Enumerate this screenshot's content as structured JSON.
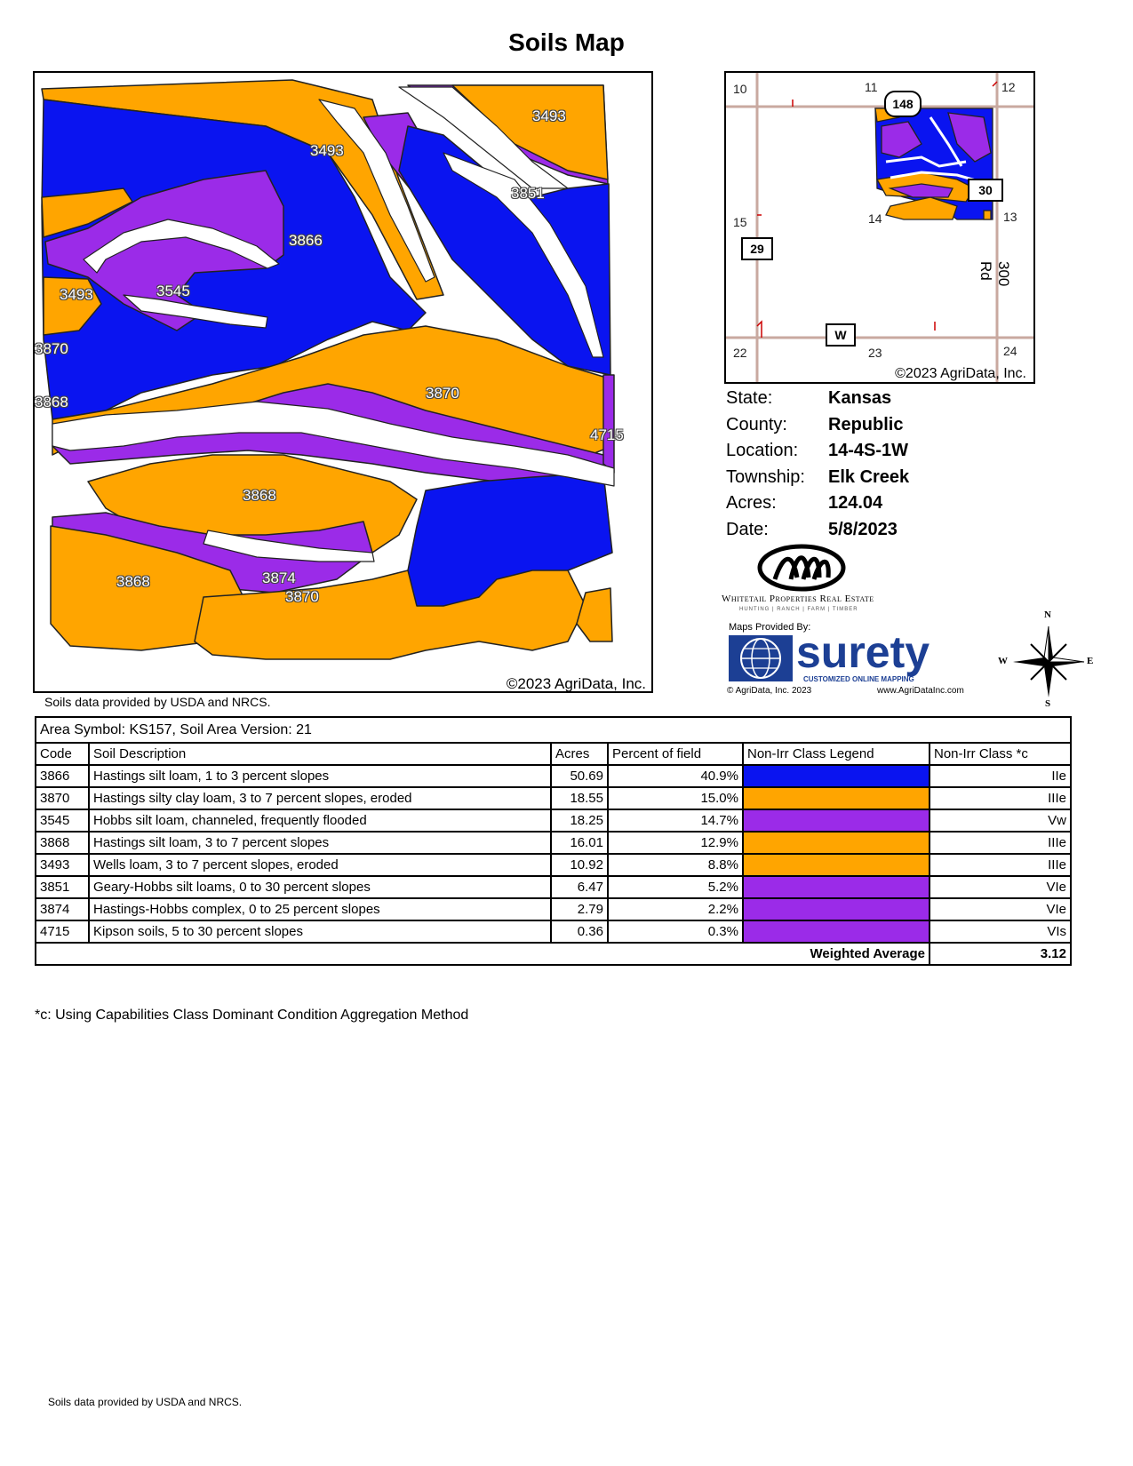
{
  "title": "Soils Map",
  "colors": {
    "blue": "#0A14F0",
    "orange": "#FFA500",
    "purple": "#9B2BE8"
  },
  "map": {
    "copyright": "©2023 AgriData, Inc.",
    "labels": [
      "3493",
      "3493",
      "3851",
      "3866",
      "3493",
      "3545",
      "3870",
      "3868",
      "3870",
      "4715",
      "3868",
      "3868",
      "3874",
      "3870"
    ]
  },
  "location_map": {
    "sections": [
      "10",
      "11",
      "12",
      "15",
      "14",
      "13",
      "22",
      "23",
      "24"
    ],
    "highways": [
      "148",
      "30",
      "29",
      "W"
    ],
    "road": "300 Rd",
    "copyright": "©2023 AgriData, Inc."
  },
  "info": [
    {
      "key": "State:",
      "value": "Kansas"
    },
    {
      "key": "County:",
      "value": "Republic"
    },
    {
      "key": "Location:",
      "value": "14-4S-1W"
    },
    {
      "key": "Township:",
      "value": "Elk Creek"
    },
    {
      "key": "Acres:",
      "value": "124.04"
    },
    {
      "key": "Date:",
      "value": "5/8/2023"
    }
  ],
  "logo": {
    "company": "Whitetail Properties Real Estate",
    "tagline": "HUNTING | RANCH | FARM | TIMBER",
    "provided_by": "Maps Provided By:",
    "surety": "surety",
    "surety_sub": "CUSTOMIZED ONLINE MAPPING",
    "agridata": "© AgriData, Inc. 2023",
    "website": "www.AgriDataInc.com"
  },
  "compass": {
    "n": "N",
    "s": "S",
    "e": "E",
    "w": "W"
  },
  "footnote_top": "Soils data provided by USDA and NRCS.",
  "table": {
    "area_symbol": "Area Symbol: KS157, Soil Area Version: 21",
    "headers": [
      "Code",
      "Soil Description",
      "Acres",
      "Percent of field",
      "Non-Irr Class Legend",
      "Non-Irr Class *c"
    ],
    "rows": [
      {
        "code": "3866",
        "desc": "Hastings silt loam, 1 to 3 percent slopes",
        "acres": "50.69",
        "pct": "40.9%",
        "color": "blue",
        "cls": "IIe"
      },
      {
        "code": "3870",
        "desc": "Hastings silty clay loam, 3 to 7 percent slopes, eroded",
        "acres": "18.55",
        "pct": "15.0%",
        "color": "orange",
        "cls": "IIIe"
      },
      {
        "code": "3545",
        "desc": "Hobbs silt loam, channeled, frequently flooded",
        "acres": "18.25",
        "pct": "14.7%",
        "color": "purple",
        "cls": "Vw"
      },
      {
        "code": "3868",
        "desc": "Hastings silt loam, 3 to 7 percent slopes",
        "acres": "16.01",
        "pct": "12.9%",
        "color": "orange",
        "cls": "IIIe"
      },
      {
        "code": "3493",
        "desc": "Wells loam, 3 to 7 percent slopes, eroded",
        "acres": "10.92",
        "pct": "8.8%",
        "color": "orange",
        "cls": "IIIe"
      },
      {
        "code": "3851",
        "desc": "Geary-Hobbs silt loams, 0 to 30 percent slopes",
        "acres": "6.47",
        "pct": "5.2%",
        "color": "purple",
        "cls": "VIe"
      },
      {
        "code": "3874",
        "desc": "Hastings-Hobbs complex, 0 to 25 percent slopes",
        "acres": "2.79",
        "pct": "2.2%",
        "color": "purple",
        "cls": "VIe"
      },
      {
        "code": "4715",
        "desc": "Kipson soils, 5 to 30 percent slopes",
        "acres": "0.36",
        "pct": "0.3%",
        "color": "purple",
        "cls": "VIs"
      }
    ],
    "weighted_label": "Weighted Average",
    "weighted_value": "3.12"
  },
  "footnote_c": "*c:  Using Capabilities Class Dominant Condition Aggregation Method",
  "footnote_bottom": "Soils data provided by USDA and NRCS."
}
